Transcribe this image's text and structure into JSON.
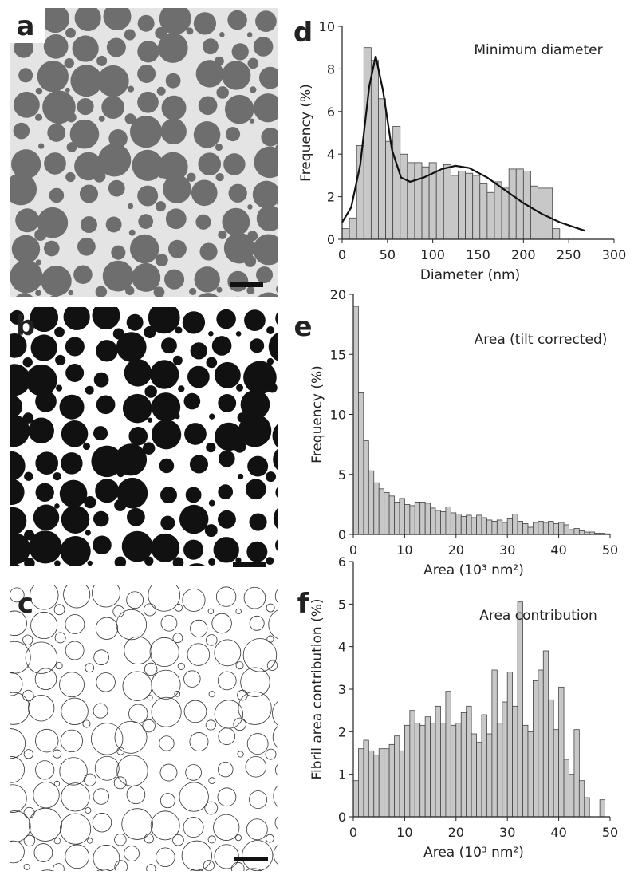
{
  "image_panels": [
    "a",
    "b",
    "c"
  ],
  "chart_data": [
    {
      "type": "histogram",
      "label": "d",
      "title": "Minimum diameter",
      "xlabel": "Diameter (nm)",
      "ylabel": "Frequency (%)",
      "bins": [
        0,
        8,
        16,
        24,
        32,
        40,
        48,
        56,
        64,
        72,
        80,
        88,
        96,
        104,
        112,
        120,
        128,
        136,
        144,
        152,
        160,
        168,
        176,
        184,
        192,
        200,
        208,
        216,
        224,
        232,
        240
      ],
      "values": [
        0.5,
        1.0,
        4.4,
        9.0,
        8.4,
        6.6,
        4.6,
        5.3,
        4.0,
        3.6,
        3.6,
        3.4,
        3.6,
        3.2,
        3.5,
        3.0,
        3.2,
        3.1,
        3.0,
        2.6,
        2.2,
        2.7,
        2.4,
        3.3,
        3.3,
        3.2,
        2.5,
        2.4,
        2.4,
        0.5
      ],
      "color": "#c8c8c8",
      "curve": {
        "x": [
          0,
          10,
          20,
          30,
          37,
          45,
          55,
          65,
          75,
          90,
          110,
          125,
          140,
          160,
          180,
          200,
          220,
          240,
          268
        ],
        "values": [
          0.8,
          1.5,
          3.5,
          7.2,
          8.6,
          7.0,
          4.2,
          2.9,
          2.7,
          2.9,
          3.3,
          3.45,
          3.35,
          2.9,
          2.3,
          1.7,
          1.2,
          0.8,
          0.4
        ],
        "color": "#111111"
      },
      "xlim": [
        0,
        300
      ],
      "ylim": [
        0,
        10
      ],
      "xticks": [
        0,
        50,
        100,
        150,
        200,
        250,
        300
      ],
      "yticks": [
        0,
        2,
        4,
        6,
        8,
        10
      ]
    },
    {
      "type": "histogram",
      "label": "e",
      "title": "Area (tilt corrected)",
      "xlabel": "Area (10³ nm²)",
      "ylabel": "Frequency (%)",
      "bins": [
        0,
        1,
        2,
        3,
        4,
        5,
        6,
        7,
        8,
        9,
        10,
        11,
        12,
        13,
        14,
        15,
        16,
        17,
        18,
        19,
        20,
        21,
        22,
        23,
        24,
        25,
        26,
        27,
        28,
        29,
        30,
        31,
        32,
        33,
        34,
        35,
        36,
        37,
        38,
        39,
        40,
        41,
        42,
        43,
        44,
        45,
        46,
        47,
        48,
        49,
        50
      ],
      "values": [
        19,
        11.8,
        7.8,
        5.3,
        4.3,
        3.8,
        3.5,
        3.2,
        2.7,
        3.0,
        2.5,
        2.4,
        2.7,
        2.7,
        2.6,
        2.2,
        2.0,
        1.9,
        2.3,
        1.8,
        1.7,
        1.5,
        1.6,
        1.4,
        1.6,
        1.4,
        1.2,
        1.1,
        1.2,
        1.0,
        1.3,
        1.7,
        1.1,
        0.9,
        0.6,
        1.0,
        1.1,
        1.0,
        1.1,
        0.9,
        1.0,
        0.8,
        0.4,
        0.5,
        0.3,
        0.2,
        0.2,
        0.1,
        0.1,
        0.05
      ],
      "color": "#c8c8c8",
      "xlim": [
        0,
        50
      ],
      "ylim": [
        0,
        20
      ],
      "xticks": [
        0,
        10,
        20,
        30,
        40,
        50
      ],
      "yticks": [
        0,
        5,
        10,
        15,
        20
      ]
    },
    {
      "type": "histogram",
      "label": "f",
      "title": "Area contribution",
      "xlabel": "Area (10³ nm²)",
      "ylabel": "Fibril area contribution (%)",
      "bins": [
        0,
        1,
        2,
        3,
        4,
        5,
        6,
        7,
        8,
        9,
        10,
        11,
        12,
        13,
        14,
        15,
        16,
        17,
        18,
        19,
        20,
        21,
        22,
        23,
        24,
        25,
        26,
        27,
        28,
        29,
        30,
        31,
        32,
        33,
        34,
        35,
        36,
        37,
        38,
        39,
        40,
        41,
        42,
        43,
        44,
        45,
        46,
        47,
        48,
        49,
        50
      ],
      "values": [
        0.85,
        1.6,
        1.8,
        1.55,
        1.45,
        1.6,
        1.6,
        1.7,
        1.9,
        1.55,
        2.15,
        2.5,
        2.2,
        2.15,
        2.35,
        2.2,
        2.6,
        2.2,
        2.95,
        2.15,
        2.2,
        2.45,
        2.6,
        1.95,
        1.75,
        2.4,
        1.95,
        3.45,
        2.2,
        2.7,
        3.4,
        2.6,
        5.05,
        2.15,
        2.0,
        3.2,
        3.45,
        3.9,
        2.75,
        2.05,
        3.05,
        1.35,
        1.0,
        2.05,
        0.85,
        0.45,
        0,
        0,
        0.4,
        0
      ],
      "color": "#c8c8c8",
      "xlim": [
        0,
        50
      ],
      "ylim": [
        0,
        6
      ],
      "xticks": [
        0,
        10,
        20,
        30,
        40,
        50
      ],
      "yticks": [
        0,
        1,
        2,
        3,
        4,
        5,
        6
      ]
    }
  ]
}
